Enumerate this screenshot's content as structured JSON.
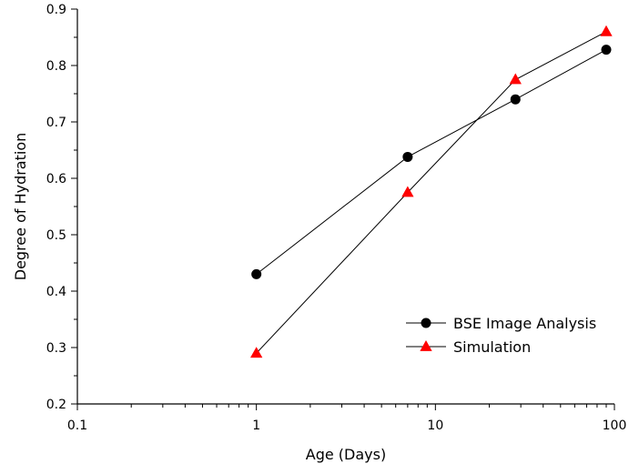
{
  "chart_data": {
    "type": "line",
    "title": "",
    "xlabel": "Age (Days)",
    "ylabel": "Degree of Hydration",
    "xscale": "log",
    "xlim": [
      0.1,
      100
    ],
    "ylim": [
      0.2,
      0.9
    ],
    "x_ticks": [
      {
        "value": 0.1,
        "label": "0.1"
      },
      {
        "value": 1,
        "label": "1"
      },
      {
        "value": 10,
        "label": "10"
      },
      {
        "value": 100,
        "label": "100"
      }
    ],
    "y_ticks": [
      {
        "value": 0.2,
        "label": "0.2"
      },
      {
        "value": 0.3,
        "label": "0.3"
      },
      {
        "value": 0.4,
        "label": "0.4"
      },
      {
        "value": 0.5,
        "label": "0.5"
      },
      {
        "value": 0.6,
        "label": "0.6"
      },
      {
        "value": 0.7,
        "label": "0.7"
      },
      {
        "value": 0.8,
        "label": "0.8"
      },
      {
        "value": 0.9,
        "label": "0.9"
      }
    ],
    "grid": false,
    "legend_position": "bottom-right",
    "series": [
      {
        "name": "BSE Image Analysis",
        "marker": "circle",
        "color": "#000000",
        "x": [
          1,
          7,
          28,
          90
        ],
        "y": [
          0.43,
          0.638,
          0.74,
          0.828
        ]
      },
      {
        "name": "Simulation",
        "marker": "triangle",
        "color": "#ff0000",
        "x": [
          1,
          7,
          28,
          90
        ],
        "y": [
          0.29,
          0.575,
          0.775,
          0.86
        ]
      }
    ]
  }
}
